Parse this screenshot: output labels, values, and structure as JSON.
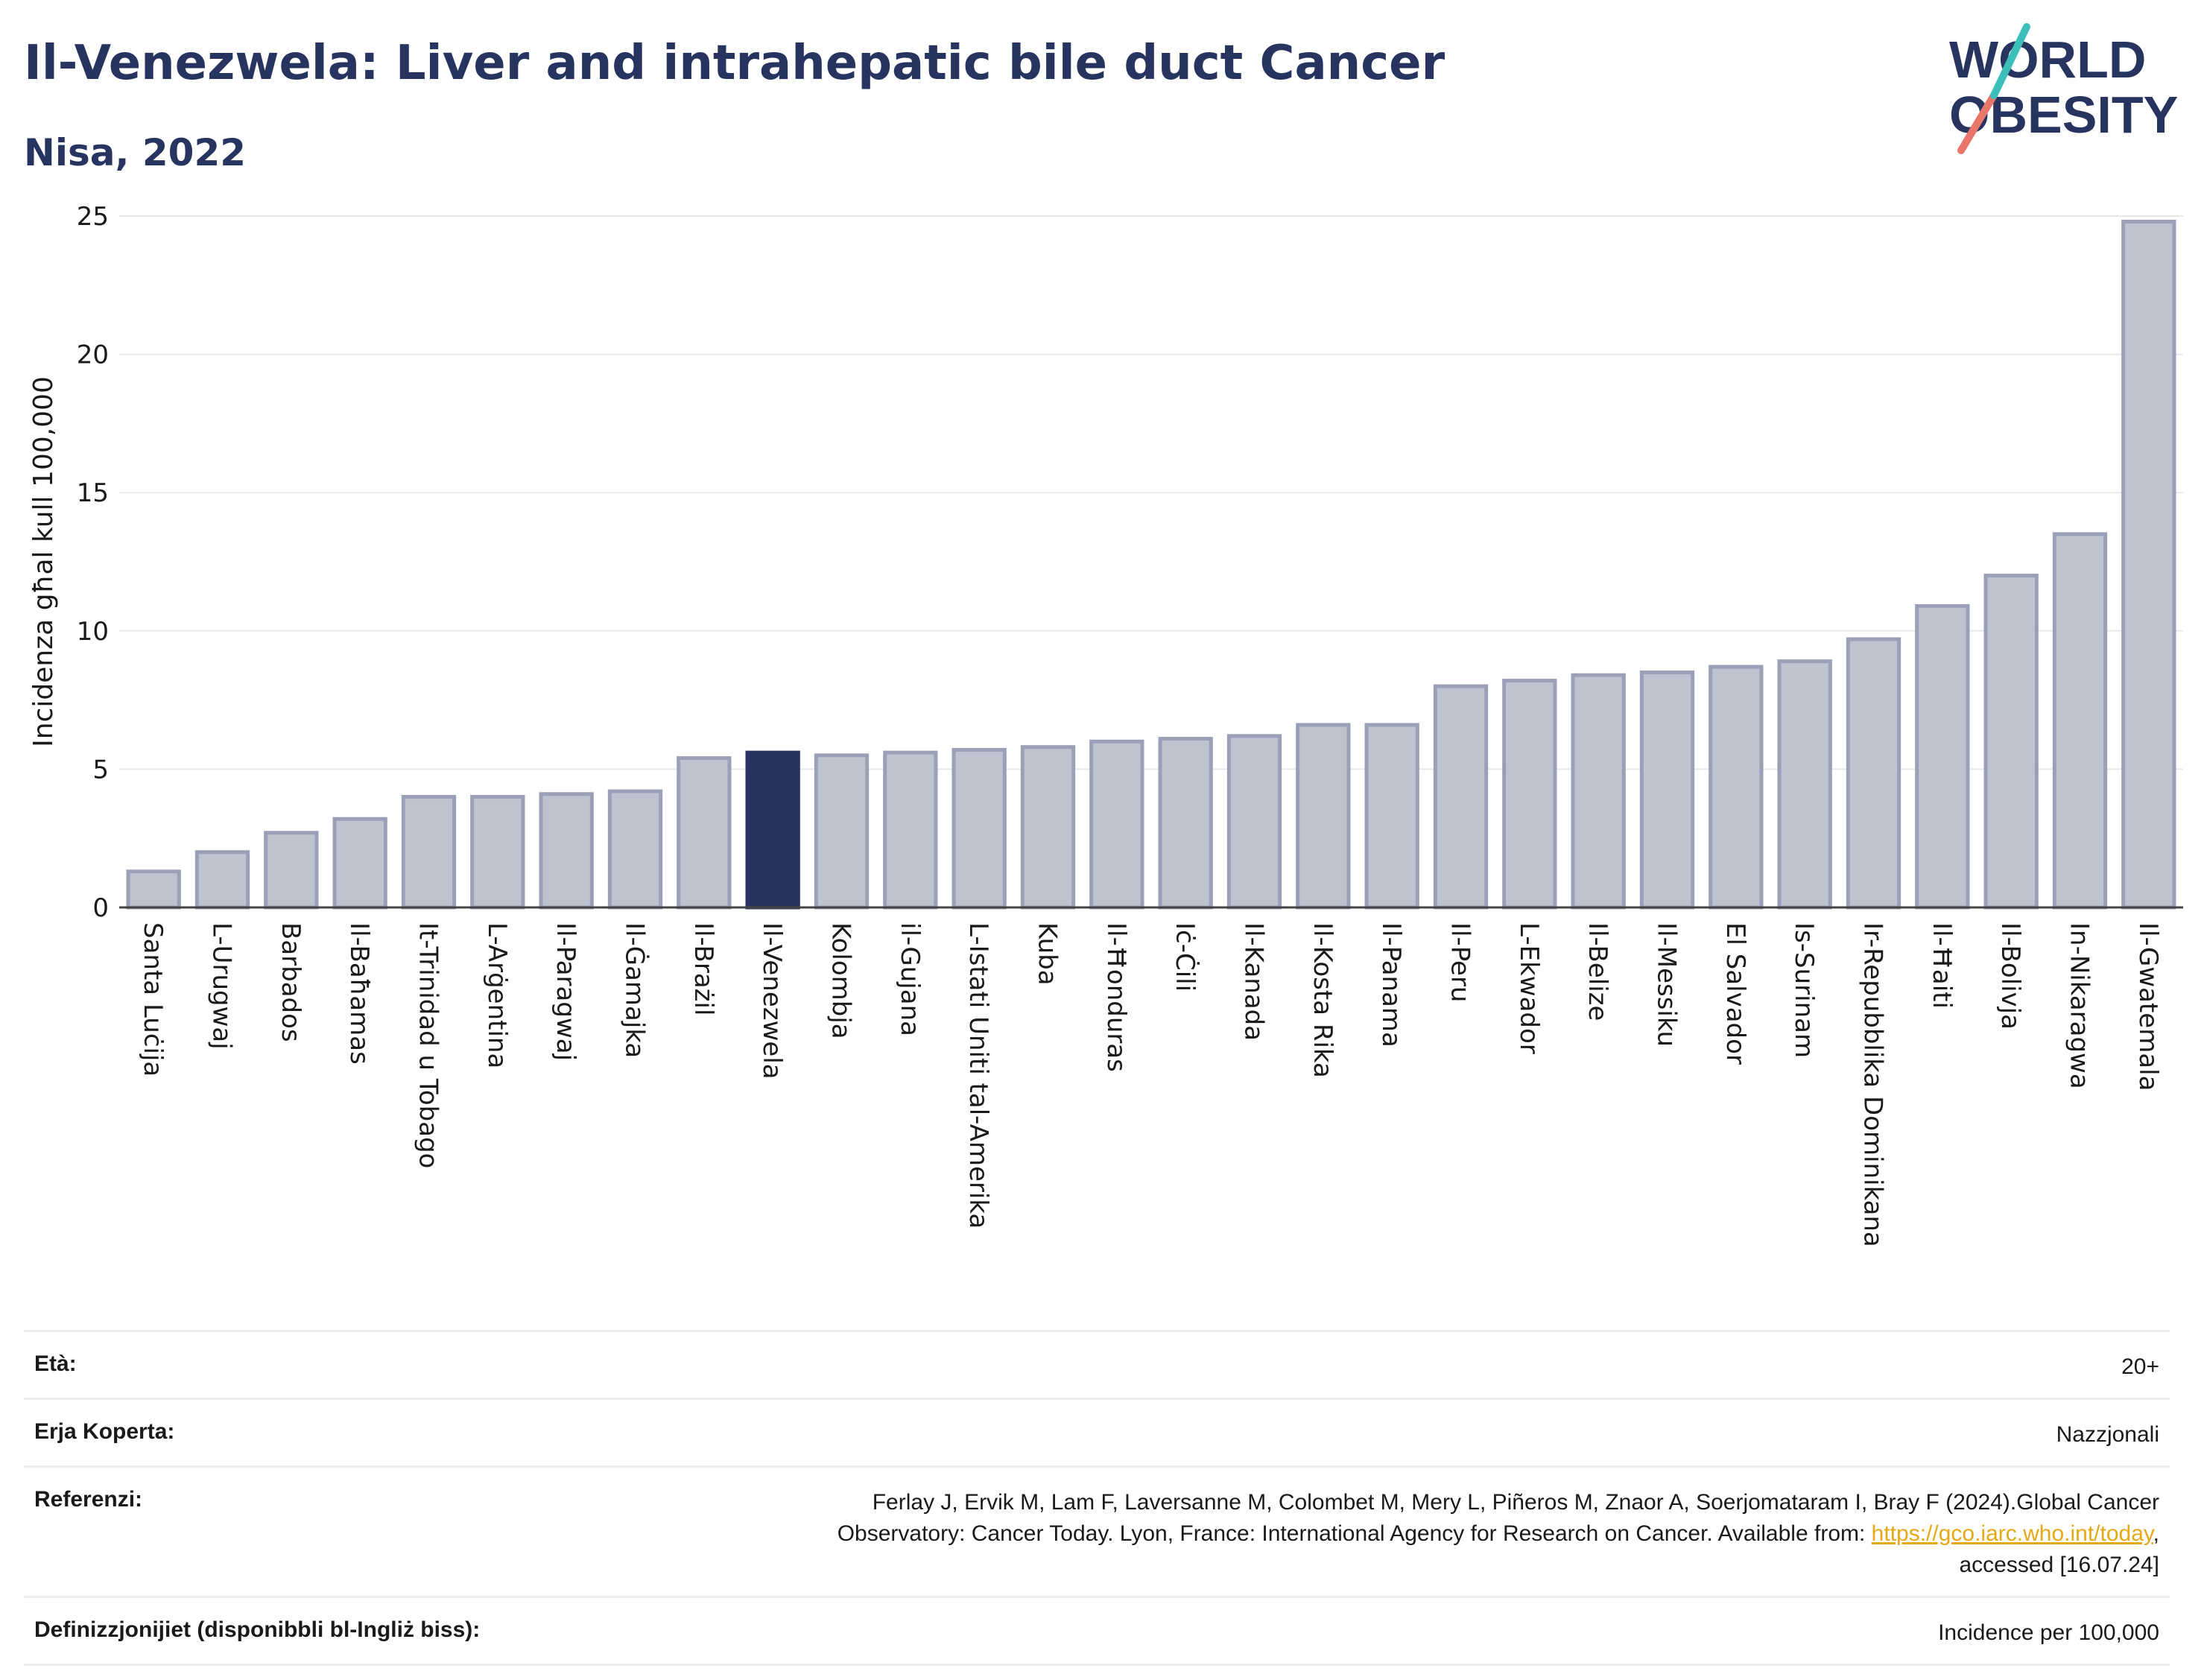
{
  "title": "Il-Venezwela: Liver and intrahepatic bile duct Cancer",
  "subtitle": "Nisa, 2022",
  "logo": {
    "line1": "WORLD",
    "line2": "OBESITY"
  },
  "chart_data": {
    "type": "bar",
    "ylabel": "Incidenza għal kull 100,000",
    "ylim": [
      0,
      25
    ],
    "yticks": [
      0,
      5,
      10,
      15,
      20,
      25
    ],
    "grid": true,
    "highlight": "Il-Venezwela",
    "colors": {
      "bar": "#bfc3d0",
      "bar_stroke": "#9aa0b8",
      "highlight": "#283460"
    },
    "categories": [
      "Santa Luċija",
      "L-Urugwaj",
      "Barbados",
      "Il-Baħamas",
      "It-Trinidad u Tobago",
      "L-Arġentina",
      "Il-Paragwaj",
      "Il-Ġamajka",
      "Il-Brażil",
      "Il-Venezwela",
      "Kolombja",
      "il-Gujana",
      "L-Istati Uniti tal-Amerika",
      "Kuba",
      "Il-Ħonduras",
      "Iċ-Ċili",
      "Il-Kanada",
      "Il-Kosta Rika",
      "Il-Panama",
      "Il-Peru",
      "L-Ekwador",
      "Il-Belize",
      "Il-Messiku",
      "El Salvador",
      "Is-Surinam",
      "Ir-Repubblika Dominikana",
      "Il-Ħaiti",
      "Il-Bolivja",
      "In-Nikaragwa",
      "Il-Gwatemala"
    ],
    "values": [
      1.3,
      2.0,
      2.7,
      3.2,
      4.0,
      4.0,
      4.1,
      4.2,
      5.4,
      5.6,
      5.5,
      5.6,
      5.7,
      5.8,
      6.0,
      6.1,
      6.2,
      6.6,
      6.6,
      8.0,
      8.2,
      8.4,
      8.5,
      8.7,
      8.9,
      9.7,
      10.9,
      12.0,
      13.5,
      24.8
    ]
  },
  "info": {
    "age_label": "Età:",
    "age_value": "20+",
    "area_label": "Erja Koperta:",
    "area_value": "Nazzjonali",
    "ref_label": "Referenzi:",
    "ref_line1": "Ferlay J, Ervik M, Lam F, Laversanne M, Colombet M, Mery L, Piñeros M, Znaor A, Soerjomataram I, Bray F (2024).Global Cancer",
    "ref_line2_pre": "Observatory: Cancer Today. Lyon, France: International Agency for Research on Cancer. Available from: ",
    "ref_link": "https://gco.iarc.who.int/today",
    "ref_line2_post": ",",
    "ref_line3": "accessed [16.07.24]",
    "def_label": "Definizzjonijiet (disponibbli bl-Ingliż biss):",
    "def_value": "Incidence per 100,000"
  }
}
